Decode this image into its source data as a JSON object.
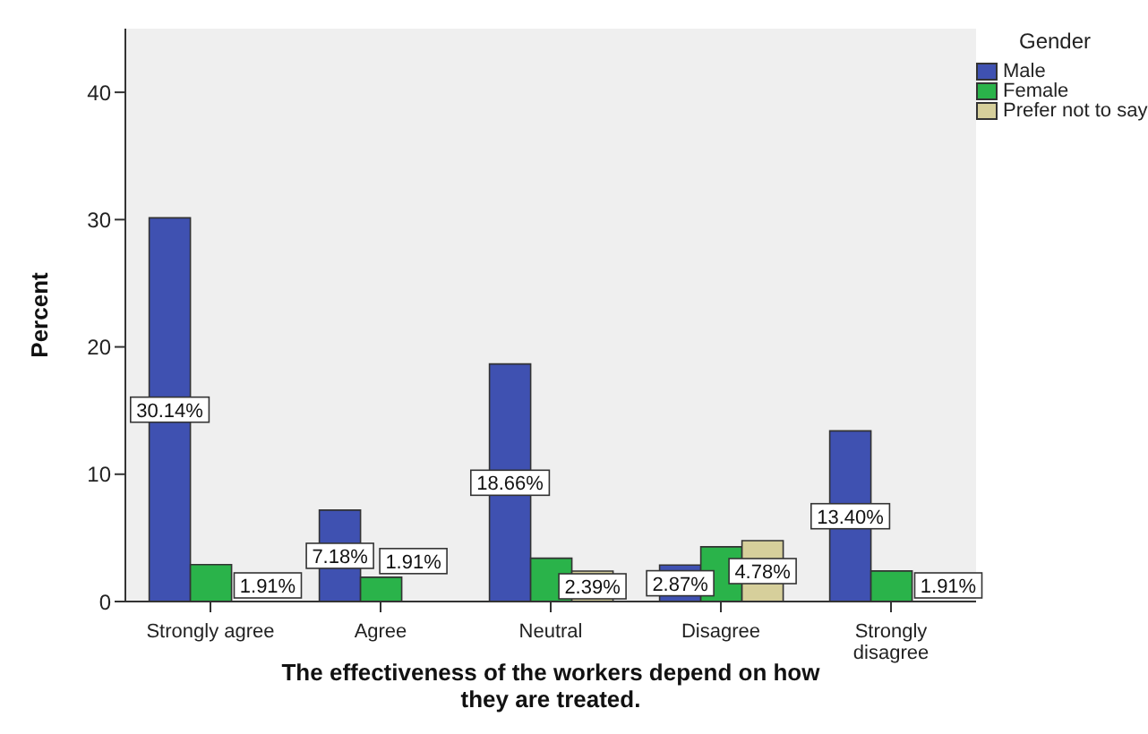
{
  "chart_data": {
    "type": "bar",
    "xlabel": "The effectiveness of the workers depend on how they are treated.",
    "ylabel": "Percent",
    "legend_title": "Gender",
    "legend": "top right",
    "grid": false,
    "categories": [
      "Strongly agree",
      "Agree",
      "Neutral",
      "Disagree",
      "Strongly disagree"
    ],
    "series": [
      {
        "name": "Male",
        "color": "#3f51b1",
        "values": [
          30.14,
          7.18,
          18.66,
          2.87,
          13.4
        ],
        "value_labels": [
          "30.14%",
          "7.18%",
          "18.66%",
          "2.87%",
          "13.40%"
        ]
      },
      {
        "name": "Female",
        "color": "#2ab34a",
        "values": [
          2.9,
          1.91,
          3.4,
          4.3,
          2.4
        ],
        "value_labels": [
          null,
          "1.91%",
          null,
          null,
          null
        ]
      },
      {
        "name": "Prefer not to say",
        "color": "#d6cf9b",
        "values": [
          null,
          null,
          2.39,
          4.78,
          null
        ],
        "value_labels": [
          null,
          null,
          "2.39%",
          "4.78%",
          null
        ]
      }
    ],
    "annotations": [
      "1.91%",
      "1.91%"
    ],
    "ylim": [
      0,
      45
    ],
    "yticks": [
      0,
      10,
      20,
      30,
      40
    ]
  }
}
